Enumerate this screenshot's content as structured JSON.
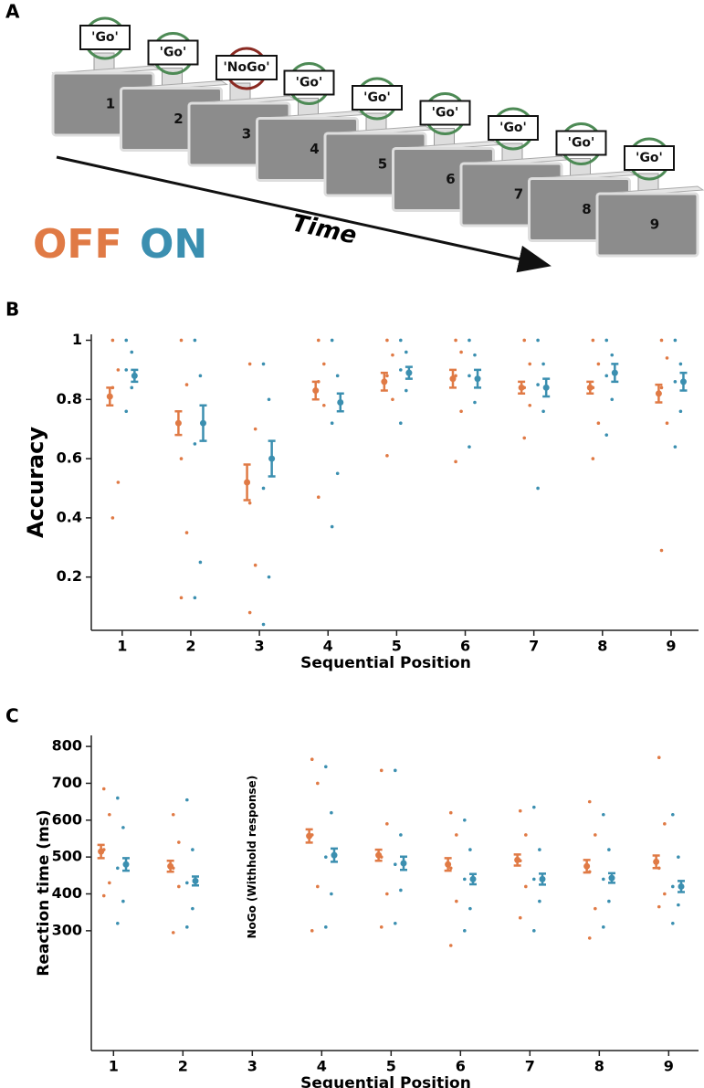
{
  "panel_a": {
    "label": "A",
    "screens": [
      "1",
      "2",
      "3",
      "4",
      "5",
      "6",
      "7",
      "8",
      "9"
    ],
    "cues": [
      "'Go'",
      "'Go'",
      "'NoGo'",
      "'Go'",
      "'Go'",
      "'Go'",
      "'Go'",
      "'Go'",
      "'Go'"
    ],
    "arrow_label": "Time"
  },
  "chart_data": [
    {
      "type": "errorbar",
      "panel_label": "B",
      "ylabel": "Accuracy",
      "xlabel": "Sequential Position",
      "x": [
        1,
        2,
        3,
        4,
        5,
        6,
        7,
        8,
        9
      ],
      "xlim": [
        0.55,
        9.4
      ],
      "xticks": [
        1,
        2,
        3,
        4,
        5,
        6,
        7,
        8,
        9
      ],
      "ylim": [
        0.02,
        1.02
      ],
      "yticks": [
        0.2,
        0.4,
        0.6,
        0.8,
        1
      ],
      "series": [
        {
          "name": "OFF",
          "color": "#e07a45",
          "values": [
            0.81,
            0.72,
            0.52,
            0.83,
            0.86,
            0.87,
            0.84,
            0.84,
            0.82
          ],
          "errors": [
            0.03,
            0.04,
            0.06,
            0.03,
            0.03,
            0.03,
            0.02,
            0.02,
            0.03
          ],
          "points": [
            [
              0.4,
              0.52,
              0.84,
              0.9,
              1.0
            ],
            [
              0.13,
              0.35,
              0.6,
              0.85,
              1.0
            ],
            [
              0.08,
              0.24,
              0.45,
              0.7,
              0.92
            ],
            [
              0.47,
              0.78,
              0.86,
              0.92,
              1.0
            ],
            [
              0.61,
              0.8,
              0.88,
              0.95,
              1.0
            ],
            [
              0.59,
              0.76,
              0.88,
              0.96,
              1.0
            ],
            [
              0.67,
              0.78,
              0.84,
              0.92,
              1.0
            ],
            [
              0.6,
              0.72,
              0.84,
              0.92,
              1.0
            ],
            [
              0.29,
              0.72,
              0.84,
              0.94,
              1.0
            ]
          ]
        },
        {
          "name": "ON",
          "color": "#3b8fb0",
          "values": [
            0.88,
            0.72,
            0.6,
            0.79,
            0.89,
            0.87,
            0.84,
            0.89,
            0.86
          ],
          "errors": [
            0.02,
            0.06,
            0.06,
            0.03,
            0.02,
            0.03,
            0.03,
            0.03,
            0.03
          ],
          "points": [
            [
              0.76,
              0.84,
              0.9,
              0.96,
              1.0
            ],
            [
              0.13,
              0.25,
              0.65,
              0.88,
              1.0
            ],
            [
              0.04,
              0.2,
              0.5,
              0.8,
              0.92
            ],
            [
              0.37,
              0.55,
              0.72,
              0.88,
              1.0
            ],
            [
              0.72,
              0.83,
              0.9,
              0.96,
              1.0
            ],
            [
              0.64,
              0.79,
              0.88,
              0.95,
              1.0
            ],
            [
              0.5,
              0.76,
              0.85,
              0.92,
              1.0
            ],
            [
              0.68,
              0.8,
              0.88,
              0.95,
              1.0
            ],
            [
              0.64,
              0.76,
              0.86,
              0.92,
              1.0
            ]
          ]
        }
      ]
    },
    {
      "type": "errorbar",
      "panel_label": "C",
      "ylabel": "Reaction time (ms)",
      "xlabel": "Sequential Position",
      "annotation": {
        "x": 3,
        "text": "NoGo (Withhold response)"
      },
      "x": [
        1,
        2,
        3,
        4,
        5,
        6,
        7,
        8,
        9
      ],
      "xlim": [
        0.68,
        9.43
      ],
      "xticks": [
        1,
        2,
        3,
        4,
        5,
        6,
        7,
        8,
        9
      ],
      "ylim": [
        -25,
        830
      ],
      "yticks": [
        300,
        400,
        500,
        600,
        700,
        800
      ],
      "series": [
        {
          "color": "#e07a45",
          "values": [
            515,
            475,
            null,
            557,
            505,
            480,
            492,
            475,
            487
          ],
          "errors": [
            18,
            15,
            null,
            18,
            15,
            17,
            15,
            17,
            17
          ],
          "points": [
            [
              395,
              430,
              520,
              615,
              685
            ],
            [
              295,
              420,
              470,
              540,
              615
            ],
            null,
            [
              300,
              420,
              560,
              700,
              765
            ],
            [
              310,
              400,
              500,
              590,
              735
            ],
            [
              260,
              380,
              470,
              560,
              620
            ],
            [
              335,
              420,
              490,
              560,
              625
            ],
            [
              280,
              360,
              460,
              560,
              650
            ],
            [
              365,
              400,
              470,
              590,
              770
            ]
          ]
        },
        {
          "color": "#3b8fb0",
          "values": [
            480,
            435,
            null,
            505,
            483,
            440,
            440,
            443,
            420
          ],
          "errors": [
            17,
            12,
            null,
            18,
            18,
            14,
            15,
            13,
            15
          ],
          "points": [
            [
              320,
              380,
              470,
              580,
              660
            ],
            [
              310,
              360,
              430,
              520,
              655
            ],
            null,
            [
              310,
              400,
              500,
              620,
              745
            ],
            [
              320,
              410,
              480,
              560,
              735
            ],
            [
              300,
              360,
              440,
              520,
              600
            ],
            [
              300,
              380,
              440,
              520,
              635
            ],
            [
              310,
              380,
              440,
              520,
              615
            ],
            [
              320,
              370,
              420,
              500,
              615
            ]
          ]
        }
      ]
    }
  ]
}
